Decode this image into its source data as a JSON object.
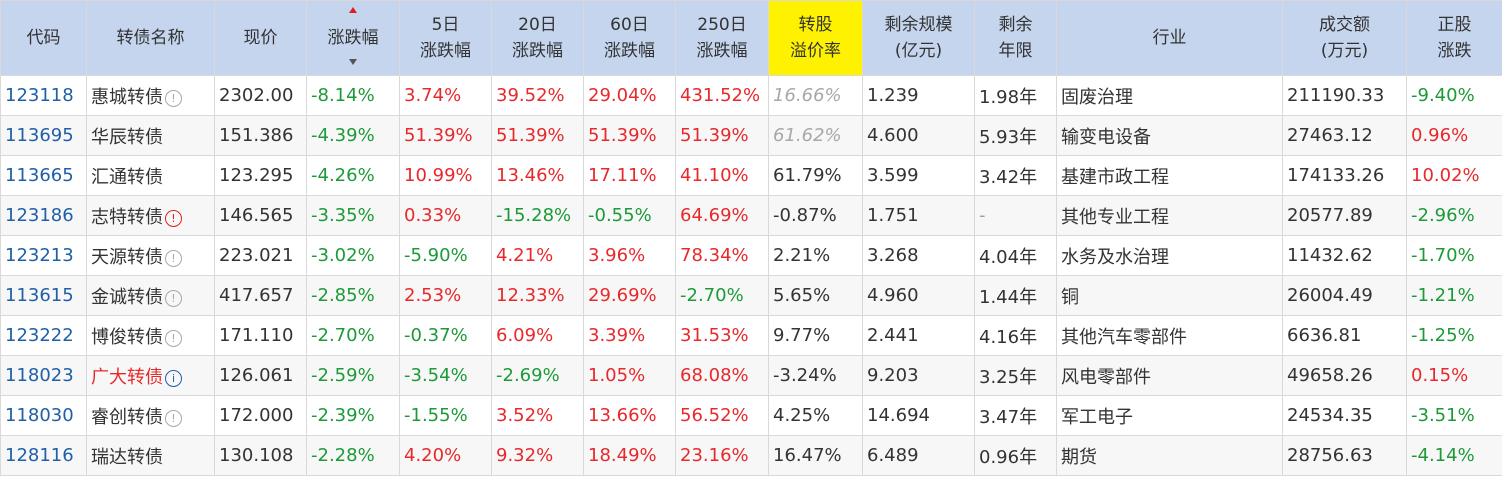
{
  "header": {
    "code": "代码",
    "name": "转债名称",
    "price": "现价",
    "change": "涨跌幅",
    "d5": [
      "5日",
      "涨跌幅"
    ],
    "d20": [
      "20日",
      "涨跌幅"
    ],
    "d60": [
      "60日",
      "涨跌幅"
    ],
    "d250": [
      "250日",
      "涨跌幅"
    ],
    "premium": [
      "转股",
      "溢价率"
    ],
    "size": [
      "剩余规模",
      "(亿元)"
    ],
    "years": [
      "剩余",
      "年限"
    ],
    "industry": "行业",
    "turnover": [
      "成交额",
      "(万元)"
    ],
    "stock": [
      "正股",
      "涨跌"
    ]
  },
  "rows": [
    {
      "code": "123118",
      "name": "惠城转债",
      "icon": "info-icon",
      "price": "2302.00",
      "change": "-8.14%",
      "d5": "3.74%",
      "d20": "39.52%",
      "d60": "29.04%",
      "d250": "431.52%",
      "premium": "16.66%",
      "size": "1.239",
      "years": "1.98年",
      "industry": "固废治理",
      "turnover": "211190.33",
      "stock": "-9.40%"
    },
    {
      "code": "113695",
      "name": "华辰转债",
      "icon": "",
      "price": "151.386",
      "change": "-4.39%",
      "d5": "51.39%",
      "d20": "51.39%",
      "d60": "51.39%",
      "d250": "51.39%",
      "premium": "61.62%",
      "size": "4.600",
      "years": "5.93年",
      "industry": "输变电设备",
      "turnover": "27463.12",
      "stock": "0.96%"
    },
    {
      "code": "113665",
      "name": "汇通转债",
      "icon": "",
      "price": "123.295",
      "change": "-4.26%",
      "d5": "10.99%",
      "d20": "13.46%",
      "d60": "17.11%",
      "d250": "41.10%",
      "premium": "61.79%",
      "size": "3.599",
      "years": "3.42年",
      "industry": "基建市政工程",
      "turnover": "174133.26",
      "stock": "10.02%"
    },
    {
      "code": "123186",
      "name": "志特转债",
      "icon": "warning-icon",
      "price": "146.565",
      "change": "-3.35%",
      "d5": "0.33%",
      "d20": "-15.28%",
      "d60": "-0.55%",
      "d250": "64.69%",
      "premium": "-0.87%",
      "size": "1.751",
      "years": "-",
      "industry": "其他专业工程",
      "turnover": "20577.89",
      "stock": "-2.96%"
    },
    {
      "code": "123213",
      "name": "天源转债",
      "icon": "info-icon",
      "price": "223.021",
      "change": "-3.02%",
      "d5": "-5.90%",
      "d20": "4.21%",
      "d60": "3.96%",
      "d250": "78.34%",
      "premium": "2.21%",
      "size": "3.268",
      "years": "4.04年",
      "industry": "水务及水治理",
      "turnover": "11432.62",
      "stock": "-1.70%"
    },
    {
      "code": "113615",
      "name": "金诚转债",
      "icon": "info-icon",
      "price": "417.657",
      "change": "-2.85%",
      "d5": "2.53%",
      "d20": "12.33%",
      "d60": "29.69%",
      "d250": "-2.70%",
      "premium": "5.65%",
      "size": "4.960",
      "years": "1.44年",
      "industry": "铜",
      "turnover": "26004.49",
      "stock": "-1.21%"
    },
    {
      "code": "123222",
      "name": "博俊转债",
      "icon": "info-icon",
      "price": "171.110",
      "change": "-2.70%",
      "d5": "-0.37%",
      "d20": "6.09%",
      "d60": "3.39%",
      "d250": "31.53%",
      "premium": "9.77%",
      "size": "2.441",
      "years": "4.16年",
      "industry": "其他汽车零部件",
      "turnover": "6636.81",
      "stock": "-1.25%"
    },
    {
      "code": "118023",
      "name": "广大转债",
      "icon": "info-blue-icon",
      "price": "126.061",
      "change": "-2.59%",
      "d5": "-3.54%",
      "d20": "-2.69%",
      "d60": "1.05%",
      "d250": "68.08%",
      "premium": "-3.24%",
      "size": "9.203",
      "years": "3.25年",
      "industry": "风电零部件",
      "turnover": "49658.26",
      "stock": "0.15%"
    },
    {
      "code": "118030",
      "name": "睿创转债",
      "icon": "info-icon",
      "price": "172.000",
      "change": "-2.39%",
      "d5": "-1.55%",
      "d20": "3.52%",
      "d60": "13.66%",
      "d250": "56.52%",
      "premium": "4.25%",
      "size": "14.694",
      "years": "3.47年",
      "industry": "军工电子",
      "turnover": "24534.35",
      "stock": "-3.51%"
    },
    {
      "code": "128116",
      "name": "瑞达转债",
      "icon": "",
      "price": "130.108",
      "change": "-2.28%",
      "d5": "4.20%",
      "d20": "9.32%",
      "d60": "18.49%",
      "d250": "23.16%",
      "premium": "16.47%",
      "size": "6.489",
      "years": "0.96年",
      "industry": "期货",
      "turnover": "28756.63",
      "stock": "-4.14%"
    }
  ],
  "colors": {
    "header_bg": "#c5d5ee",
    "highlight_header_bg": "#fff200",
    "up": "#e8282b",
    "down": "#1c9a38",
    "code": "#1f5fa8"
  }
}
